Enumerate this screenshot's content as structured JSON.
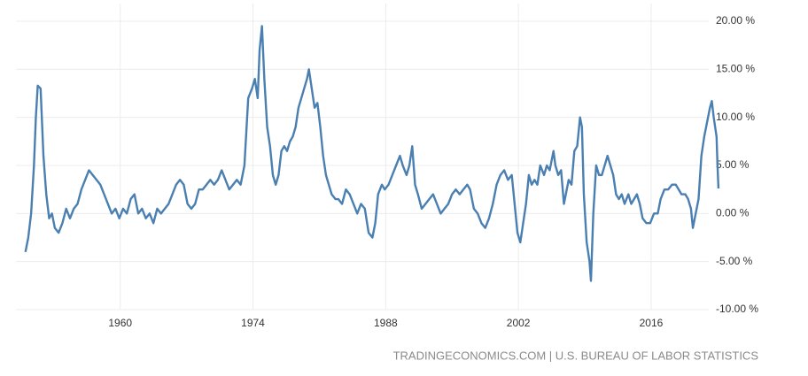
{
  "chart_data": {
    "type": "line",
    "source": "TRADINGECONOMICS.COM | U.S. BUREAU OF LABOR STATISTICS",
    "color": "#4a7fb1",
    "grid": true,
    "xlim": [
      1949,
      2023.2
    ],
    "xticks": [
      1960,
      1974,
      1988,
      2002,
      2016
    ],
    "ylim": [
      -10,
      20
    ],
    "yticks": [
      {
        "value": -10,
        "label": "-10.00 %"
      },
      {
        "value": -5,
        "label": "-5.00 %"
      },
      {
        "value": 0,
        "label": "0.00 %"
      },
      {
        "value": 5,
        "label": "5.00 %"
      },
      {
        "value": 10,
        "label": "10.00 %"
      },
      {
        "value": 15,
        "label": "15.00 %"
      },
      {
        "value": 20,
        "label": "20.00 %"
      }
    ],
    "x": [
      1950.0,
      1950.3,
      1950.6,
      1950.9,
      1951.1,
      1951.3,
      1951.6,
      1951.9,
      1952.2,
      1952.5,
      1952.8,
      1953.1,
      1953.5,
      1953.9,
      1954.3,
      1954.7,
      1955.1,
      1955.5,
      1955.9,
      1956.3,
      1956.7,
      1957.1,
      1957.5,
      1957.9,
      1958.3,
      1958.7,
      1959.1,
      1959.5,
      1959.9,
      1960.3,
      1960.7,
      1961.1,
      1961.5,
      1961.9,
      1962.3,
      1962.7,
      1963.1,
      1963.5,
      1963.9,
      1964.3,
      1964.7,
      1965.1,
      1965.5,
      1965.9,
      1966.3,
      1966.7,
      1967.1,
      1967.5,
      1967.9,
      1968.3,
      1968.7,
      1969.1,
      1969.5,
      1969.9,
      1970.3,
      1970.7,
      1971.1,
      1971.5,
      1971.9,
      1972.3,
      1972.7,
      1973.1,
      1973.5,
      1973.9,
      1974.2,
      1974.5,
      1974.7,
      1974.95,
      1975.2,
      1975.5,
      1975.8,
      1976.1,
      1976.4,
      1976.7,
      1977.0,
      1977.3,
      1977.6,
      1977.9,
      1978.2,
      1978.5,
      1978.8,
      1979.1,
      1979.4,
      1979.7,
      1979.9,
      1980.2,
      1980.5,
      1980.8,
      1981.1,
      1981.4,
      1981.7,
      1982.0,
      1982.3,
      1982.7,
      1983.0,
      1983.4,
      1983.8,
      1984.2,
      1984.6,
      1985.0,
      1985.4,
      1985.8,
      1986.2,
      1986.6,
      1986.9,
      1987.2,
      1987.6,
      1987.9,
      1988.3,
      1988.7,
      1989.1,
      1989.5,
      1989.8,
      1990.2,
      1990.5,
      1990.8,
      1991.1,
      1991.4,
      1991.8,
      1992.2,
      1992.6,
      1993.0,
      1993.4,
      1993.8,
      1994.2,
      1994.6,
      1995.0,
      1995.4,
      1995.8,
      1996.2,
      1996.6,
      1996.9,
      1997.3,
      1997.7,
      1998.1,
      1998.5,
      1998.9,
      1999.3,
      1999.7,
      2000.1,
      2000.5,
      2000.9,
      2001.3,
      2001.6,
      2001.9,
      2002.2,
      2002.5,
      2002.8,
      2003.1,
      2003.4,
      2003.7,
      2004.0,
      2004.3,
      2004.7,
      2005.0,
      2005.3,
      2005.7,
      2005.9,
      2006.2,
      2006.5,
      2006.8,
      2007.0,
      2007.3,
      2007.6,
      2007.9,
      2008.2,
      2008.5,
      2008.7,
      2008.9,
      2009.2,
      2009.5,
      2009.65,
      2009.9,
      2010.2,
      2010.5,
      2010.8,
      2011.1,
      2011.4,
      2011.7,
      2012.0,
      2012.3,
      2012.6,
      2012.9,
      2013.2,
      2013.6,
      2013.9,
      2014.2,
      2014.5,
      2014.8,
      2015.1,
      2015.5,
      2015.9,
      2016.3,
      2016.7,
      2017.0,
      2017.4,
      2017.8,
      2018.2,
      2018.6,
      2018.9,
      2019.2,
      2019.6,
      2019.9,
      2020.2,
      2020.4,
      2020.7,
      2021.0,
      2021.3,
      2021.6,
      2021.9,
      2022.2,
      2022.4,
      2022.6,
      2022.9,
      2023.0,
      2023.1
    ],
    "values": [
      -4,
      -2.5,
      0,
      5,
      10,
      13.3,
      13,
      6,
      2,
      -0.5,
      0,
      -1.5,
      -2,
      -1,
      0.5,
      -0.5,
      0.5,
      1,
      2.5,
      3.5,
      4.5,
      4,
      3.5,
      3,
      2,
      1,
      0,
      0.5,
      -0.5,
      0.5,
      0,
      1.5,
      2,
      0,
      0.5,
      -0.5,
      0,
      -1,
      0.5,
      0,
      0.5,
      1,
      2,
      3,
      3.5,
      3,
      1,
      0.5,
      1,
      2.5,
      2.5,
      3,
      3.5,
      3,
      3.5,
      4.5,
      3.5,
      2.5,
      3,
      3.5,
      3,
      5,
      12,
      13,
      14,
      12,
      17,
      19.5,
      14,
      9,
      7,
      4,
      3,
      4,
      6.5,
      7,
      6.5,
      7.5,
      8,
      9,
      11,
      12,
      13,
      14,
      15,
      13,
      11,
      11.5,
      9,
      6,
      4,
      3,
      2,
      1.5,
      1.5,
      1,
      2.5,
      2,
      1,
      0,
      1,
      0.5,
      -2,
      -2.5,
      -1,
      2,
      3,
      2.5,
      3,
      4,
      5,
      6,
      5,
      4,
      5,
      7,
      3,
      2,
      0.5,
      1,
      1.5,
      2,
      1,
      0,
      0.5,
      1,
      2,
      2.5,
      2,
      2.5,
      3,
      2.5,
      0.5,
      0,
      -1,
      -1.5,
      -0.5,
      1,
      3,
      4,
      4.5,
      3.5,
      4,
      1,
      -2,
      -3,
      -1,
      1,
      4,
      3,
      3.5,
      3,
      5,
      4,
      5,
      4.5,
      6.5,
      5,
      4,
      4.5,
      1,
      2,
      3.5,
      3,
      6.5,
      7,
      10,
      9,
      2,
      -3,
      -5,
      -7,
      0,
      5,
      4,
      4,
      5,
      6,
      5,
      4,
      2,
      1.5,
      2,
      1,
      2,
      1,
      1.5,
      2,
      1,
      -0.5,
      -1,
      -1,
      0,
      0,
      1.5,
      2.5,
      2.5,
      3,
      3,
      2.5,
      2,
      2,
      1.5,
      0.5,
      -1.5,
      0,
      1.5,
      6,
      8,
      9.5,
      11,
      11.7,
      10,
      8,
      5,
      2.6
    ]
  }
}
